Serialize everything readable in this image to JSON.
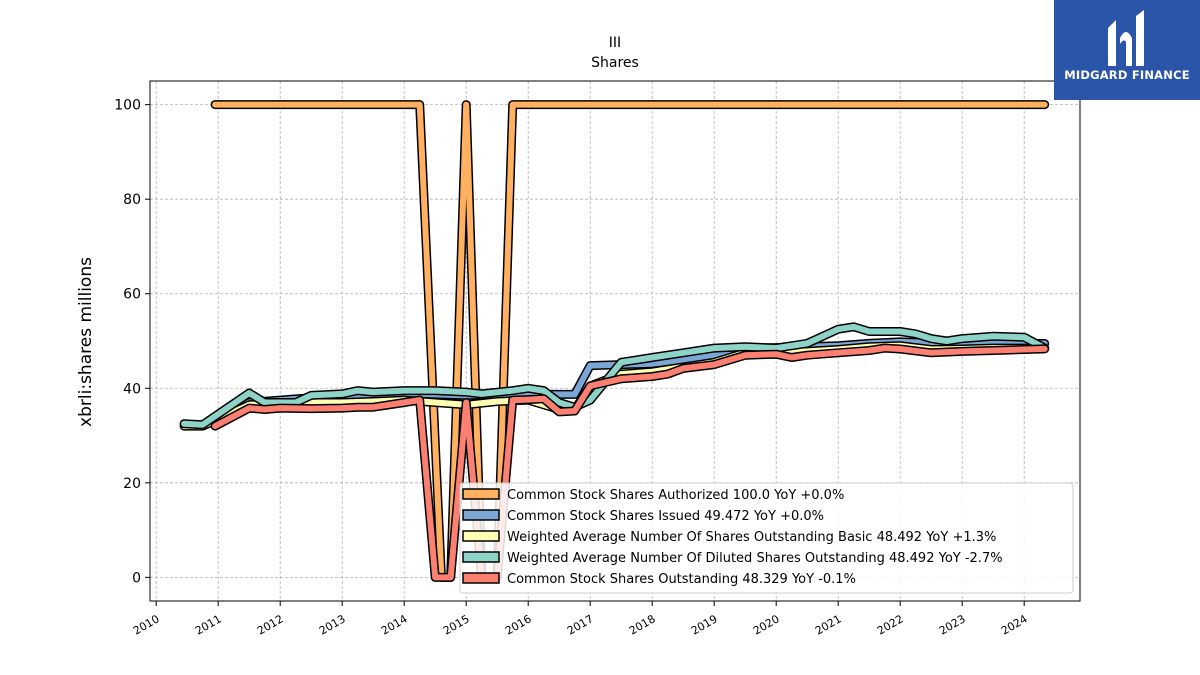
{
  "brand": {
    "name": "MIDGARD FINANCE",
    "color": "#2a55a8"
  },
  "chart_data": {
    "type": "line",
    "title": "III",
    "subtitle": "Shares",
    "xlabel": "",
    "ylabel": "xbrli:shares millions",
    "xlim": [
      2009.9,
      2024.9
    ],
    "ylim": [
      -5,
      105
    ],
    "yticks": [
      0,
      20,
      40,
      60,
      80,
      100
    ],
    "xticks": [
      "2010",
      "2011",
      "2012",
      "2013",
      "2014",
      "2015",
      "2016",
      "2017",
      "2018",
      "2019",
      "2020",
      "2021",
      "2022",
      "2023",
      "2024"
    ],
    "grid": true,
    "legend_position": "lower-right",
    "series": [
      {
        "name": "Common Stock Shares Authorized",
        "legend": "Common Stock Shares Authorized  100.0 YoY +0.0%",
        "color": "#ffb061",
        "x": [
          2010.95,
          2014.25,
          2014.6,
          2014.75,
          2015.0,
          2015.25,
          2015.5,
          2015.75,
          2024.33
        ],
        "y": [
          100,
          100,
          0,
          0,
          100,
          0,
          0,
          100,
          100
        ]
      },
      {
        "name": "Common Stock Shares Issued",
        "legend": "Common Stock Shares Issued  49.472 YoY +0.0%",
        "color": "#7ba6d6",
        "x": [
          2010.95,
          2011.5,
          2012.0,
          2012.5,
          2013.0,
          2013.5,
          2014.0,
          2014.25,
          2015.0,
          2015.5,
          2015.75,
          2016.25,
          2016.75,
          2017.0,
          2017.5,
          2018.0,
          2018.5,
          2019.0,
          2019.5,
          2020.0,
          2020.5,
          2021.0,
          2021.5,
          2022.0,
          2022.5,
          2023.0,
          2023.5,
          2024.0,
          2024.33
        ],
        "y": [
          33,
          37,
          37.5,
          38,
          38,
          38.5,
          38.8,
          38.8,
          38.5,
          38.7,
          38.7,
          38.7,
          38.7,
          44.8,
          45,
          45.2,
          46,
          47,
          48.5,
          48.6,
          48.8,
          49,
          49.5,
          49.8,
          49.6,
          49.5,
          49.5,
          49.47,
          49.47
        ]
      },
      {
        "name": "Weighted Average Number Of Shares Outstanding Basic",
        "legend": "Weighted Average Number Of Shares Outstanding Basic  48.492 YoY +1.3%",
        "color": "#ffffb3",
        "x": [
          2010.45,
          2010.75,
          2011.5,
          2012.0,
          2012.5,
          2013.0,
          2013.5,
          2014.0,
          2014.5,
          2015.0,
          2015.5,
          2016.0,
          2016.5,
          2016.75,
          2017.0,
          2017.5,
          2018.0,
          2018.5,
          2019.0,
          2019.5,
          2020.0,
          2020.5,
          2021.0,
          2021.5,
          2022.0,
          2022.5,
          2023.0,
          2023.5,
          2024.0,
          2024.33
        ],
        "y": [
          32,
          32,
          36.5,
          36.8,
          37,
          37,
          37.2,
          37.5,
          37,
          36.5,
          37.2,
          37.5,
          35.5,
          35.5,
          40.5,
          43,
          43.5,
          44.5,
          45.5,
          47.5,
          47.6,
          47.8,
          48.2,
          48.8,
          49,
          48.2,
          48.3,
          48.5,
          48.49,
          48.49
        ]
      },
      {
        "name": "Weighted Average Number Of Diluted Shares Outstanding",
        "legend": "Weighted Average Number Of Diluted Shares Outstanding  48.492 YoY -2.7%",
        "color": "#8dd3c7",
        "x": [
          2010.45,
          2010.75,
          2011.5,
          2011.75,
          2012.25,
          2012.5,
          2013.0,
          2013.25,
          2013.5,
          2014.0,
          2014.5,
          2015.0,
          2015.25,
          2015.75,
          2016.0,
          2016.25,
          2016.5,
          2016.75,
          2017.0,
          2017.5,
          2018.0,
          2018.5,
          2019.0,
          2019.5,
          2020.0,
          2020.5,
          2020.75,
          2021.0,
          2021.25,
          2021.5,
          2022.0,
          2022.25,
          2022.5,
          2022.75,
          2023.0,
          2023.5,
          2024.0,
          2024.33
        ],
        "y": [
          32.5,
          32.3,
          39,
          37,
          37,
          38.5,
          38.8,
          39.5,
          39.2,
          39.5,
          39.5,
          39.2,
          38.8,
          39.5,
          40,
          39.5,
          37,
          36,
          37.5,
          45.5,
          46.5,
          47.5,
          48.5,
          48.8,
          48.5,
          49.5,
          51,
          52.5,
          53,
          52,
          52,
          51.5,
          50.5,
          50,
          50.5,
          51,
          50.8,
          48.5
        ]
      },
      {
        "name": "Common Stock Shares Outstanding",
        "legend": "Common Stock Shares Outstanding  48.329 YoY -0.1%",
        "color": "#fb8072",
        "x": [
          2010.95,
          2011.5,
          2011.75,
          2012.0,
          2012.5,
          2013.0,
          2013.25,
          2013.5,
          2014.0,
          2014.25,
          2014.5,
          2014.75,
          2015.0,
          2015.25,
          2015.5,
          2015.75,
          2016.0,
          2016.25,
          2016.5,
          2016.75,
          2017.0,
          2017.5,
          2018.0,
          2018.25,
          2018.5,
          2019.0,
          2019.5,
          2020.0,
          2020.25,
          2020.5,
          2021.0,
          2021.5,
          2021.75,
          2022.0,
          2022.5,
          2023.0,
          2023.5,
          2024.0,
          2024.33
        ],
        "y": [
          32,
          35.8,
          35.5,
          35.8,
          35.7,
          35.8,
          36,
          36,
          37,
          37.5,
          0,
          0,
          37,
          0,
          0,
          37.5,
          37.6,
          37.8,
          35,
          35.2,
          40.5,
          42,
          42.5,
          43,
          44.2,
          45,
          47,
          47.2,
          46.5,
          47,
          47.5,
          48,
          48.5,
          48.3,
          47.5,
          47.8,
          48,
          48.2,
          48.33
        ]
      }
    ]
  }
}
